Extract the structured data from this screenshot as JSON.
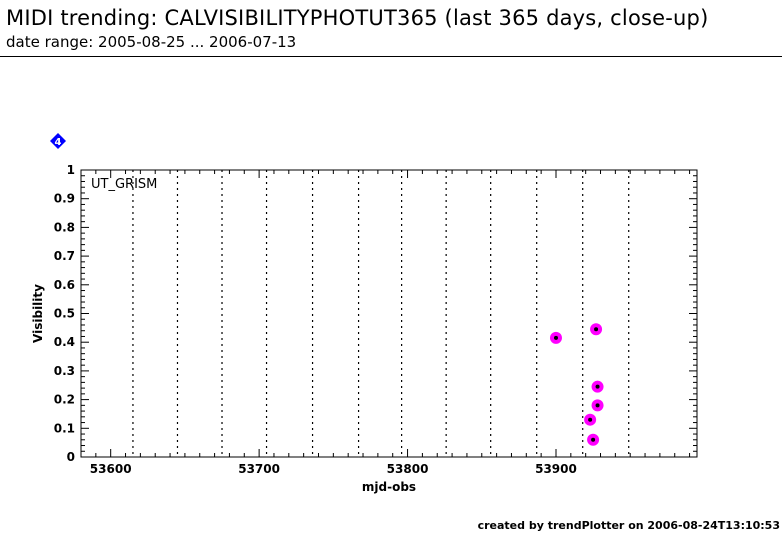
{
  "header": {
    "title": "MIDI trending: CALVISIBILITYPHOTUT365 (last 365 days, close-up)",
    "subtitle": "date range: 2005-08-25 ... 2006-07-13"
  },
  "footer": {
    "text": "created by trendPlotter on 2006-08-24T13:10:53"
  },
  "marker_label": "4",
  "colors": {
    "point_fill": "#ff00ff",
    "point_center": "#000000",
    "marker_blue": "#0000ff"
  },
  "chart_data": {
    "type": "scatter",
    "xlabel": "mjd-obs",
    "ylabel": "Visibility",
    "annotation": "UT_GRISM",
    "xlim": [
      53580,
      53995
    ],
    "ylim": [
      0,
      1
    ],
    "xticks": [
      53600,
      53700,
      53800,
      53900
    ],
    "yticks": [
      0,
      0.1,
      0.2,
      0.3,
      0.4,
      0.5,
      0.6,
      0.7,
      0.8,
      0.9,
      1
    ],
    "ytick_labels": [
      "0",
      "0.1",
      "0.2",
      "0.3",
      "0.4",
      "0.5",
      "0.6",
      "0.7",
      "0.8",
      "0.9",
      "1"
    ],
    "vlines": [
      53615,
      53645,
      53675,
      53705,
      53736,
      53767,
      53796,
      53826,
      53856,
      53887,
      53918,
      53949
    ],
    "grid": false,
    "points": [
      {
        "x": 53900,
        "y": 0.415
      },
      {
        "x": 53927,
        "y": 0.445
      },
      {
        "x": 53928,
        "y": 0.245
      },
      {
        "x": 53928,
        "y": 0.18
      },
      {
        "x": 53923,
        "y": 0.13
      },
      {
        "x": 53925,
        "y": 0.06
      }
    ]
  }
}
